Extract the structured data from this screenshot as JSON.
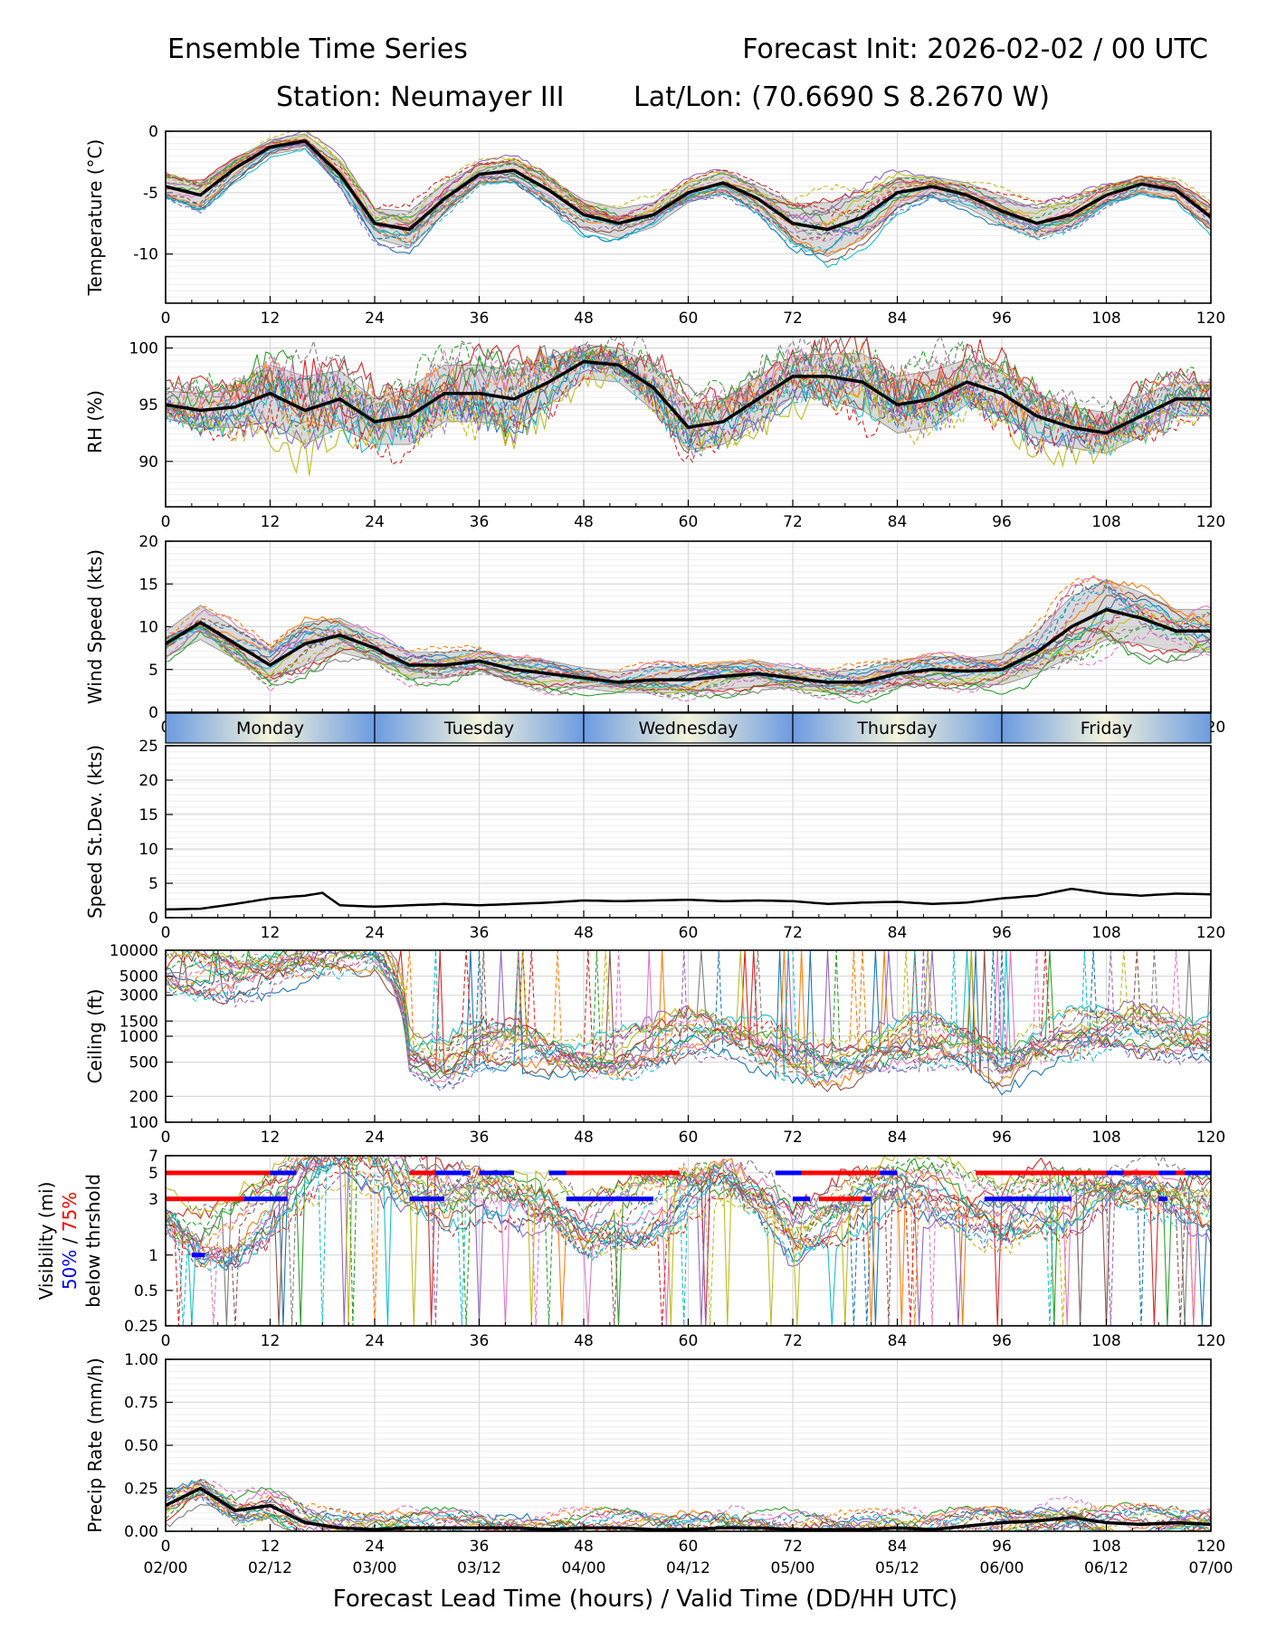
{
  "header": {
    "title_left": "Ensemble Time Series",
    "title_right": "Forecast Init: 2026-02-02 / 00 UTC",
    "station": "Station: Neumayer III",
    "latlon": "Lat/Lon: (70.6690 S 8.2670 W)"
  },
  "xaxis": {
    "ticks": [
      "0",
      "12",
      "24",
      "36",
      "48",
      "60",
      "72",
      "84",
      "96",
      "108",
      "120"
    ],
    "valid_ticks": [
      "02/00",
      "02/12",
      "03/00",
      "03/12",
      "04/00",
      "04/12",
      "05/00",
      "05/12",
      "06/00",
      "06/12",
      "07/00"
    ],
    "label": "Forecast Lead Time (hours) / Valid Time (DD/HH UTC)"
  },
  "days": [
    "Monday",
    "Tuesday",
    "Wednesday",
    "Thursday",
    "Friday"
  ],
  "colors": {
    "mean": "#000000",
    "spread": "#bbbbbb",
    "vis50": "#0000ff",
    "vis75": "#ff0000",
    "members": [
      "#1f77b4",
      "#ff7f0e",
      "#2ca02c",
      "#d62728",
      "#9467bd",
      "#8c564b",
      "#e377c2",
      "#7f7f7f",
      "#bcbd22",
      "#17becf"
    ]
  },
  "chart_data": [
    {
      "type": "line",
      "ylabel": "Temperature (°C)",
      "ylim": [
        -14,
        0
      ],
      "yticks": [
        "0",
        "-5",
        "-10"
      ],
      "x": [
        0,
        4,
        8,
        12,
        16,
        20,
        24,
        28,
        32,
        36,
        40,
        44,
        48,
        52,
        56,
        60,
        64,
        68,
        72,
        76,
        80,
        84,
        88,
        92,
        96,
        100,
        104,
        108,
        112,
        116,
        120
      ],
      "mean": [
        -4.5,
        -5.2,
        -3.0,
        -1.3,
        -0.8,
        -3.5,
        -7.5,
        -8.0,
        -5.5,
        -3.5,
        -3.2,
        -4.8,
        -6.8,
        -7.5,
        -6.8,
        -5.0,
        -4.2,
        -5.5,
        -7.5,
        -8.0,
        -7.0,
        -5.0,
        -4.5,
        -5.2,
        -6.5,
        -7.5,
        -6.8,
        -5.2,
        -4.3,
        -4.8,
        -7.0
      ],
      "spread": [
        0.8,
        1.0,
        0.8,
        0.6,
        0.6,
        1.0,
        1.2,
        1.5,
        1.2,
        0.8,
        0.8,
        1.0,
        1.2,
        1.2,
        1.0,
        0.8,
        0.8,
        1.0,
        1.6,
        2.2,
        1.8,
        1.2,
        0.8,
        1.0,
        1.2,
        1.2,
        1.0,
        0.8,
        0.6,
        0.6,
        1.0
      ],
      "stats_series": null
    },
    {
      "type": "line",
      "ylabel": "RH (%)",
      "ylim": [
        86,
        101
      ],
      "yticks": [
        "100",
        "95",
        "90"
      ],
      "x": [
        0,
        4,
        8,
        12,
        16,
        20,
        24,
        28,
        32,
        36,
        40,
        44,
        48,
        52,
        56,
        60,
        64,
        68,
        72,
        76,
        80,
        84,
        88,
        92,
        96,
        100,
        104,
        108,
        112,
        116,
        120
      ],
      "mean": [
        95.0,
        94.5,
        94.8,
        96.0,
        94.5,
        95.5,
        93.5,
        94.0,
        96.0,
        96.0,
        95.5,
        97.0,
        98.8,
        98.5,
        96.5,
        93.0,
        93.5,
        95.5,
        97.5,
        97.5,
        97.0,
        95.0,
        95.5,
        97.0,
        96.0,
        94.0,
        93.0,
        92.5,
        94.0,
        95.5,
        95.5
      ],
      "spread": [
        1.2,
        1.5,
        1.8,
        2.5,
        3.0,
        2.5,
        2.0,
        2.5,
        2.5,
        2.5,
        2.5,
        2.0,
        1.5,
        1.5,
        2.0,
        2.0,
        2.0,
        2.0,
        1.8,
        2.0,
        2.5,
        2.5,
        2.5,
        2.0,
        2.0,
        2.0,
        1.8,
        1.8,
        1.8,
        1.5,
        1.5
      ]
    },
    {
      "type": "line",
      "ylabel": "Wind Speed (kts)",
      "ylim": [
        0,
        20
      ],
      "yticks": [
        "20",
        "15",
        "10",
        "5",
        "0"
      ],
      "x": [
        0,
        4,
        8,
        12,
        16,
        20,
        24,
        28,
        32,
        36,
        40,
        44,
        48,
        52,
        56,
        60,
        64,
        68,
        72,
        76,
        80,
        84,
        88,
        92,
        96,
        100,
        104,
        108,
        112,
        116,
        120
      ],
      "mean": [
        8.0,
        10.5,
        8.0,
        5.5,
        8.0,
        9.0,
        7.5,
        5.5,
        5.5,
        6.0,
        5.0,
        4.5,
        4.0,
        3.5,
        3.8,
        3.8,
        4.2,
        4.5,
        4.0,
        3.5,
        3.5,
        4.5,
        5.0,
        4.8,
        5.0,
        7.0,
        10.0,
        12.0,
        11.0,
        9.5,
        9.5
      ],
      "spread": [
        1.5,
        2.0,
        1.8,
        1.8,
        2.5,
        2.0,
        1.5,
        1.5,
        1.5,
        1.2,
        1.2,
        1.5,
        1.2,
        1.2,
        1.5,
        1.5,
        1.5,
        1.5,
        1.2,
        1.2,
        1.5,
        1.5,
        1.5,
        1.5,
        1.8,
        2.5,
        3.5,
        3.5,
        3.0,
        2.5,
        2.5
      ]
    },
    {
      "type": "line",
      "ylabel": "Speed St.Dev. (kts)",
      "ylim": [
        0,
        25
      ],
      "yticks": [
        "25",
        "20",
        "15",
        "10",
        "5",
        "0"
      ],
      "x": [
        0,
        4,
        8,
        12,
        16,
        18,
        20,
        24,
        28,
        32,
        36,
        40,
        44,
        48,
        52,
        56,
        60,
        64,
        68,
        72,
        76,
        80,
        84,
        88,
        92,
        96,
        100,
        104,
        108,
        112,
        116,
        120
      ],
      "mean": [
        1.2,
        1.3,
        2.0,
        2.8,
        3.2,
        3.6,
        1.8,
        1.6,
        1.8,
        2.0,
        1.8,
        2.0,
        2.2,
        2.5,
        2.4,
        2.5,
        2.6,
        2.4,
        2.5,
        2.4,
        2.0,
        2.2,
        2.3,
        2.0,
        2.2,
        2.8,
        3.2,
        4.2,
        3.5,
        3.2,
        3.5,
        3.4
      ]
    },
    {
      "type": "line",
      "ylabel": "Ceiling (ft)",
      "yticks": [
        "10000",
        "5000",
        "3000",
        "1500",
        "1000",
        "500",
        "200",
        "100"
      ],
      "ytick_values": [
        10000,
        5000,
        3000,
        1500,
        1000,
        500,
        200,
        100
      ],
      "x": [
        0,
        4,
        8,
        12,
        16,
        20,
        24,
        28,
        32,
        36,
        40,
        44,
        48,
        52,
        56,
        60,
        64,
        68,
        72,
        76,
        80,
        84,
        88,
        92,
        96,
        100,
        104,
        108,
        112,
        116,
        120
      ],
      "mean": [
        6000,
        5500,
        5000,
        6000,
        8000,
        10000,
        10000,
        600,
        450,
        800,
        900,
        650,
        500,
        550,
        800,
        1200,
        1100,
        800,
        600,
        450,
        550,
        800,
        900,
        800,
        450,
        700,
        1000,
        1200,
        1200,
        1000,
        900
      ]
    },
    {
      "type": "line",
      "ylabel": "Visibility (mi)",
      "ylabel_50": "50%",
      "ylabel_sep": " / ",
      "ylabel_75": "75%",
      "ylabel_below": "below thrshold",
      "yticks": [
        "7",
        "5",
        "3",
        "1",
        "0.5",
        "0.25"
      ],
      "ytick_values": [
        7,
        5,
        3,
        1,
        0.5,
        0.25
      ],
      "x": [
        0,
        4,
        8,
        12,
        16,
        20,
        24,
        28,
        32,
        36,
        40,
        44,
        48,
        52,
        56,
        60,
        64,
        68,
        72,
        76,
        80,
        84,
        88,
        92,
        96,
        100,
        104,
        108,
        112,
        116,
        120
      ],
      "mean": [
        2.0,
        1.2,
        1.5,
        2.5,
        5,
        7,
        6,
        4,
        3,
        3.5,
        3,
        2.5,
        1.5,
        2.0,
        2.5,
        3.5,
        4.5,
        3,
        1.5,
        2.0,
        3.0,
        4.0,
        3.5,
        2.5,
        2.0,
        3.0,
        3.0,
        3.5,
        3.5,
        3.0,
        2.5
      ],
      "threshold_bands": [
        {
          "level": 5,
          "color": "red",
          "segments": [
            [
              0,
              12
            ]
          ]
        },
        {
          "level": 5,
          "color": "blue",
          "segments": [
            [
              12,
              15
            ]
          ]
        },
        {
          "level": 3,
          "color": "red",
          "segments": [
            [
              0,
              9
            ]
          ]
        },
        {
          "level": 3,
          "color": "blue",
          "segments": [
            [
              9,
              14
            ]
          ]
        },
        {
          "level": 1,
          "color": "blue",
          "segments": [
            [
              3,
              4.5
            ]
          ]
        },
        {
          "level": 5,
          "color": "red",
          "segments": [
            [
              28,
              31
            ],
            [
              45,
              59
            ],
            [
              71,
              82
            ],
            [
              93,
              120
            ]
          ]
        },
        {
          "level": 5,
          "color": "blue",
          "segments": [
            [
              31,
              35
            ],
            [
              36,
              40
            ],
            [
              44,
              46
            ],
            [
              70,
              73
            ],
            [
              82,
              84
            ],
            [
              108,
              110
            ],
            [
              114,
              116
            ],
            [
              117,
              120
            ]
          ]
        },
        {
          "level": 3,
          "color": "red",
          "segments": [
            [
              47,
              50
            ],
            [
              75,
              80
            ],
            [
              96,
              99
            ]
          ]
        },
        {
          "level": 3,
          "color": "blue",
          "segments": [
            [
              28,
              32
            ],
            [
              46,
              56
            ],
            [
              72,
              74
            ],
            [
              80,
              81
            ],
            [
              94,
              104
            ],
            [
              114,
              115
            ]
          ]
        }
      ]
    },
    {
      "type": "line",
      "ylabel": "Precip Rate (mm/h)",
      "ylim": [
        0,
        1
      ],
      "yticks": [
        "1.00",
        "0.75",
        "0.50",
        "0.25",
        "0.00"
      ],
      "x": [
        0,
        4,
        8,
        12,
        16,
        20,
        24,
        28,
        32,
        36,
        40,
        44,
        48,
        52,
        56,
        60,
        64,
        68,
        72,
        76,
        80,
        84,
        88,
        92,
        96,
        100,
        104,
        108,
        112,
        116,
        120
      ],
      "mean": [
        0.15,
        0.25,
        0.12,
        0.15,
        0.05,
        0.02,
        0.01,
        0.02,
        0.02,
        0.02,
        0.02,
        0.01,
        0.02,
        0.02,
        0.01,
        0.01,
        0.02,
        0.02,
        0.01,
        0.01,
        0.01,
        0.02,
        0.01,
        0.03,
        0.05,
        0.06,
        0.08,
        0.05,
        0.04,
        0.05,
        0.04
      ]
    }
  ]
}
